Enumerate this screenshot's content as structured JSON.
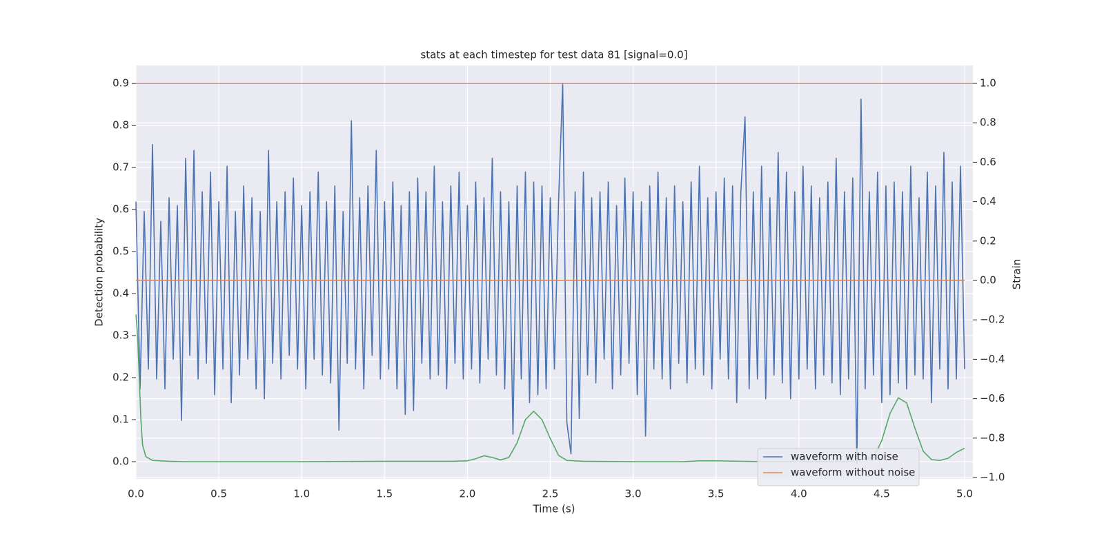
{
  "chart_data": {
    "type": "line",
    "title": "stats at each timestep for test data 81 [signal=0.0]",
    "xlabel": "Time (s)",
    "ylabel": "Detection probability",
    "y2label": "Strain",
    "xlim": [
      0,
      5.05
    ],
    "ylim": [
      -0.041,
      0.943
    ],
    "y2lim": [
      -1.007,
      1.091
    ],
    "xticks": [
      {
        "value": 0,
        "label": "0.0"
      },
      0.5,
      {
        "value": 1,
        "label": "1.0"
      },
      1.5,
      {
        "value": 2,
        "label": "2.0"
      },
      2.5,
      {
        "value": 3,
        "label": "3.0"
      },
      3.5,
      {
        "value": 4,
        "label": "4.0"
      },
      4.5,
      {
        "value": 5,
        "label": "5.0"
      }
    ],
    "yticks": [
      {
        "value": 0,
        "label": "0.0"
      },
      0.1,
      0.2,
      0.3,
      0.4,
      0.5,
      0.6,
      0.7,
      0.8,
      0.9
    ],
    "y2ticks": [
      {
        "value": -1,
        "label": "−1.0"
      },
      {
        "value": -0.8,
        "label": "−0.8"
      },
      {
        "value": -0.6,
        "label": "−0.6"
      },
      {
        "value": -0.4,
        "label": "−0.4"
      },
      {
        "value": -0.2,
        "label": "−0.2"
      },
      {
        "value": 0,
        "label": "0.0"
      },
      0.2,
      0.4,
      0.6,
      0.8,
      {
        "value": 1,
        "label": "1.0"
      }
    ],
    "grid": true,
    "legend": "lower right",
    "background": "#eaeaf2",
    "hlines": [
      {
        "value": 0.9,
        "color": "#e07070"
      }
    ],
    "series": [
      {
        "name": "waveform with noise",
        "color": "#4c72b0",
        "axis": "y2",
        "x": [
          0,
          0.025,
          0.05,
          0.075,
          0.1,
          0.125,
          0.15,
          0.175,
          0.2,
          0.225,
          0.25,
          0.275,
          0.3,
          0.325,
          0.35,
          0.375,
          0.4,
          0.425,
          0.45,
          0.475,
          0.5,
          0.525,
          0.55,
          0.575,
          0.6,
          0.625,
          0.65,
          0.675,
          0.7,
          0.725,
          0.75,
          0.775,
          0.8,
          0.825,
          0.85,
          0.875,
          0.9,
          0.925,
          0.95,
          0.975,
          1,
          1.025,
          1.05,
          1.075,
          1.1,
          1.125,
          1.15,
          1.175,
          1.2,
          1.225,
          1.25,
          1.275,
          1.3,
          1.325,
          1.35,
          1.375,
          1.4,
          1.425,
          1.45,
          1.475,
          1.5,
          1.525,
          1.55,
          1.575,
          1.6,
          1.625,
          1.65,
          1.675,
          1.7,
          1.725,
          1.75,
          1.775,
          1.8,
          1.825,
          1.85,
          1.875,
          1.9,
          1.925,
          1.95,
          1.975,
          2,
          2.025,
          2.05,
          2.075,
          2.1,
          2.125,
          2.15,
          2.175,
          2.2,
          2.225,
          2.25,
          2.275,
          2.3,
          2.325,
          2.35,
          2.375,
          2.4,
          2.425,
          2.45,
          2.475,
          2.5,
          2.525,
          2.55,
          2.575,
          2.6,
          2.625,
          2.65,
          2.675,
          2.7,
          2.725,
          2.75,
          2.775,
          2.8,
          2.825,
          2.85,
          2.875,
          2.9,
          2.925,
          2.95,
          2.975,
          3,
          3.025,
          3.05,
          3.075,
          3.1,
          3.125,
          3.15,
          3.175,
          3.2,
          3.225,
          3.25,
          3.275,
          3.3,
          3.325,
          3.35,
          3.375,
          3.4,
          3.425,
          3.45,
          3.475,
          3.5,
          3.525,
          3.55,
          3.575,
          3.6,
          3.625,
          3.65,
          3.675,
          3.7,
          3.725,
          3.75,
          3.775,
          3.8,
          3.825,
          3.85,
          3.875,
          3.9,
          3.925,
          3.95,
          3.975,
          4,
          4.025,
          4.05,
          4.075,
          4.1,
          4.125,
          4.15,
          4.175,
          4.2,
          4.225,
          4.25,
          4.275,
          4.3,
          4.325,
          4.35,
          4.375,
          4.4,
          4.425,
          4.45,
          4.475,
          4.5,
          4.525,
          4.55,
          4.575,
          4.6,
          4.625,
          4.65,
          4.675,
          4.7,
          4.725,
          4.75,
          4.775,
          4.8,
          4.825,
          4.85,
          4.875,
          4.9,
          4.925,
          4.95,
          4.975,
          5
        ],
        "values": [
          0.4,
          -0.55,
          0.35,
          -0.45,
          0.69,
          -0.5,
          0.3,
          -0.55,
          0.42,
          -0.4,
          0.38,
          -0.71,
          0.62,
          -0.38,
          0.66,
          -0.5,
          0.45,
          -0.42,
          0.55,
          -0.58,
          0.4,
          -0.45,
          0.58,
          -0.62,
          0.35,
          -0.48,
          0.48,
          -0.4,
          0.42,
          -0.55,
          0.35,
          -0.6,
          0.66,
          -0.42,
          0.4,
          -0.5,
          0.45,
          -0.38,
          0.52,
          -0.45,
          0.38,
          -0.55,
          0.45,
          -0.4,
          0.55,
          -0.48,
          0.4,
          -0.52,
          0.48,
          -0.76,
          0.35,
          -0.42,
          0.81,
          -0.45,
          0.42,
          -0.55,
          0.48,
          -0.38,
          0.66,
          -0.5,
          0.4,
          -0.45,
          0.5,
          -0.55,
          0.38,
          -0.68,
          0.45,
          -0.66,
          0.52,
          -0.42,
          0.45,
          -0.5,
          0.58,
          -0.48,
          0.4,
          -0.55,
          0.48,
          -0.42,
          0.55,
          -0.5,
          0.38,
          -0.45,
          0.5,
          -0.52,
          0.42,
          -0.4,
          0.62,
          -0.48,
          0.45,
          -0.55,
          0.4,
          -0.78,
          0.48,
          -0.5,
          0.55,
          -0.62,
          0.5,
          -0.58,
          0.48,
          -0.55,
          0.42,
          -0.45,
          0.4,
          1.0,
          -0.72,
          -0.88,
          0.45,
          -0.7,
          0.55,
          -0.48,
          0.42,
          -0.52,
          0.45,
          -0.4,
          0.5,
          -0.55,
          0.38,
          -0.48,
          0.52,
          -0.42,
          0.45,
          -0.58,
          0.4,
          -0.79,
          0.48,
          -0.45,
          0.55,
          -0.5,
          0.42,
          -0.55,
          0.48,
          -0.42,
          0.4,
          -0.52,
          0.5,
          -0.45,
          0.58,
          -0.48,
          0.42,
          -0.55,
          0.45,
          -0.4,
          0.52,
          -0.5,
          0.48,
          -0.62,
          0.45,
          0.83,
          -0.55,
          0.45,
          -0.5,
          0.58,
          -0.6,
          0.42,
          -0.48,
          0.65,
          -0.52,
          0.55,
          -0.6,
          0.45,
          -0.5,
          0.58,
          -0.45,
          0.48,
          -0.55,
          0.42,
          -0.48,
          0.5,
          -0.52,
          0.62,
          -0.58,
          0.45,
          -0.5,
          0.52,
          -0.93,
          0.92,
          -0.55,
          0.45,
          -0.48,
          0.55,
          -0.62,
          0.48,
          -0.58,
          0.5,
          -0.52,
          0.45,
          -0.55,
          0.58,
          -0.48,
          0.42,
          -0.5,
          0.55,
          -0.62,
          0.48,
          -0.45,
          0.65,
          -0.55,
          0.5,
          -0.5,
          0.58,
          -0.45
        ]
      },
      {
        "name": "waveform without noise",
        "color": "#dd8452",
        "axis": "y2",
        "x": [
          0,
          5
        ],
        "values": [
          0,
          0
        ]
      },
      {
        "color": "#55a868",
        "axis": "y",
        "x": [
          0,
          0.01,
          0.02,
          0.03,
          0.04,
          0.06,
          0.1,
          0.2,
          0.3,
          0.5,
          1.0,
          1.5,
          1.9,
          2.0,
          2.05,
          2.1,
          2.15,
          2.2,
          2.25,
          2.3,
          2.35,
          2.4,
          2.45,
          2.5,
          2.55,
          2.6,
          2.7,
          3.0,
          3.3,
          3.4,
          3.5,
          3.8,
          4.3,
          4.45,
          4.5,
          4.55,
          4.6,
          4.65,
          4.7,
          4.75,
          4.8,
          4.85,
          4.9,
          4.95,
          5.0
        ],
        "values": [
          0.35,
          0.3,
          0.2,
          0.1,
          0.04,
          0.012,
          0.003,
          0.001,
          0.0,
          0.0,
          0.0,
          0.001,
          0.001,
          0.002,
          0.007,
          0.014,
          0.01,
          0.004,
          0.01,
          0.045,
          0.1,
          0.12,
          0.1,
          0.055,
          0.015,
          0.003,
          0.001,
          0.0,
          0.0,
          0.002,
          0.002,
          0.0,
          0.0,
          0.01,
          0.05,
          0.115,
          0.152,
          0.14,
          0.08,
          0.025,
          0.005,
          0.003,
          0.008,
          0.022,
          0.032
        ]
      }
    ]
  }
}
